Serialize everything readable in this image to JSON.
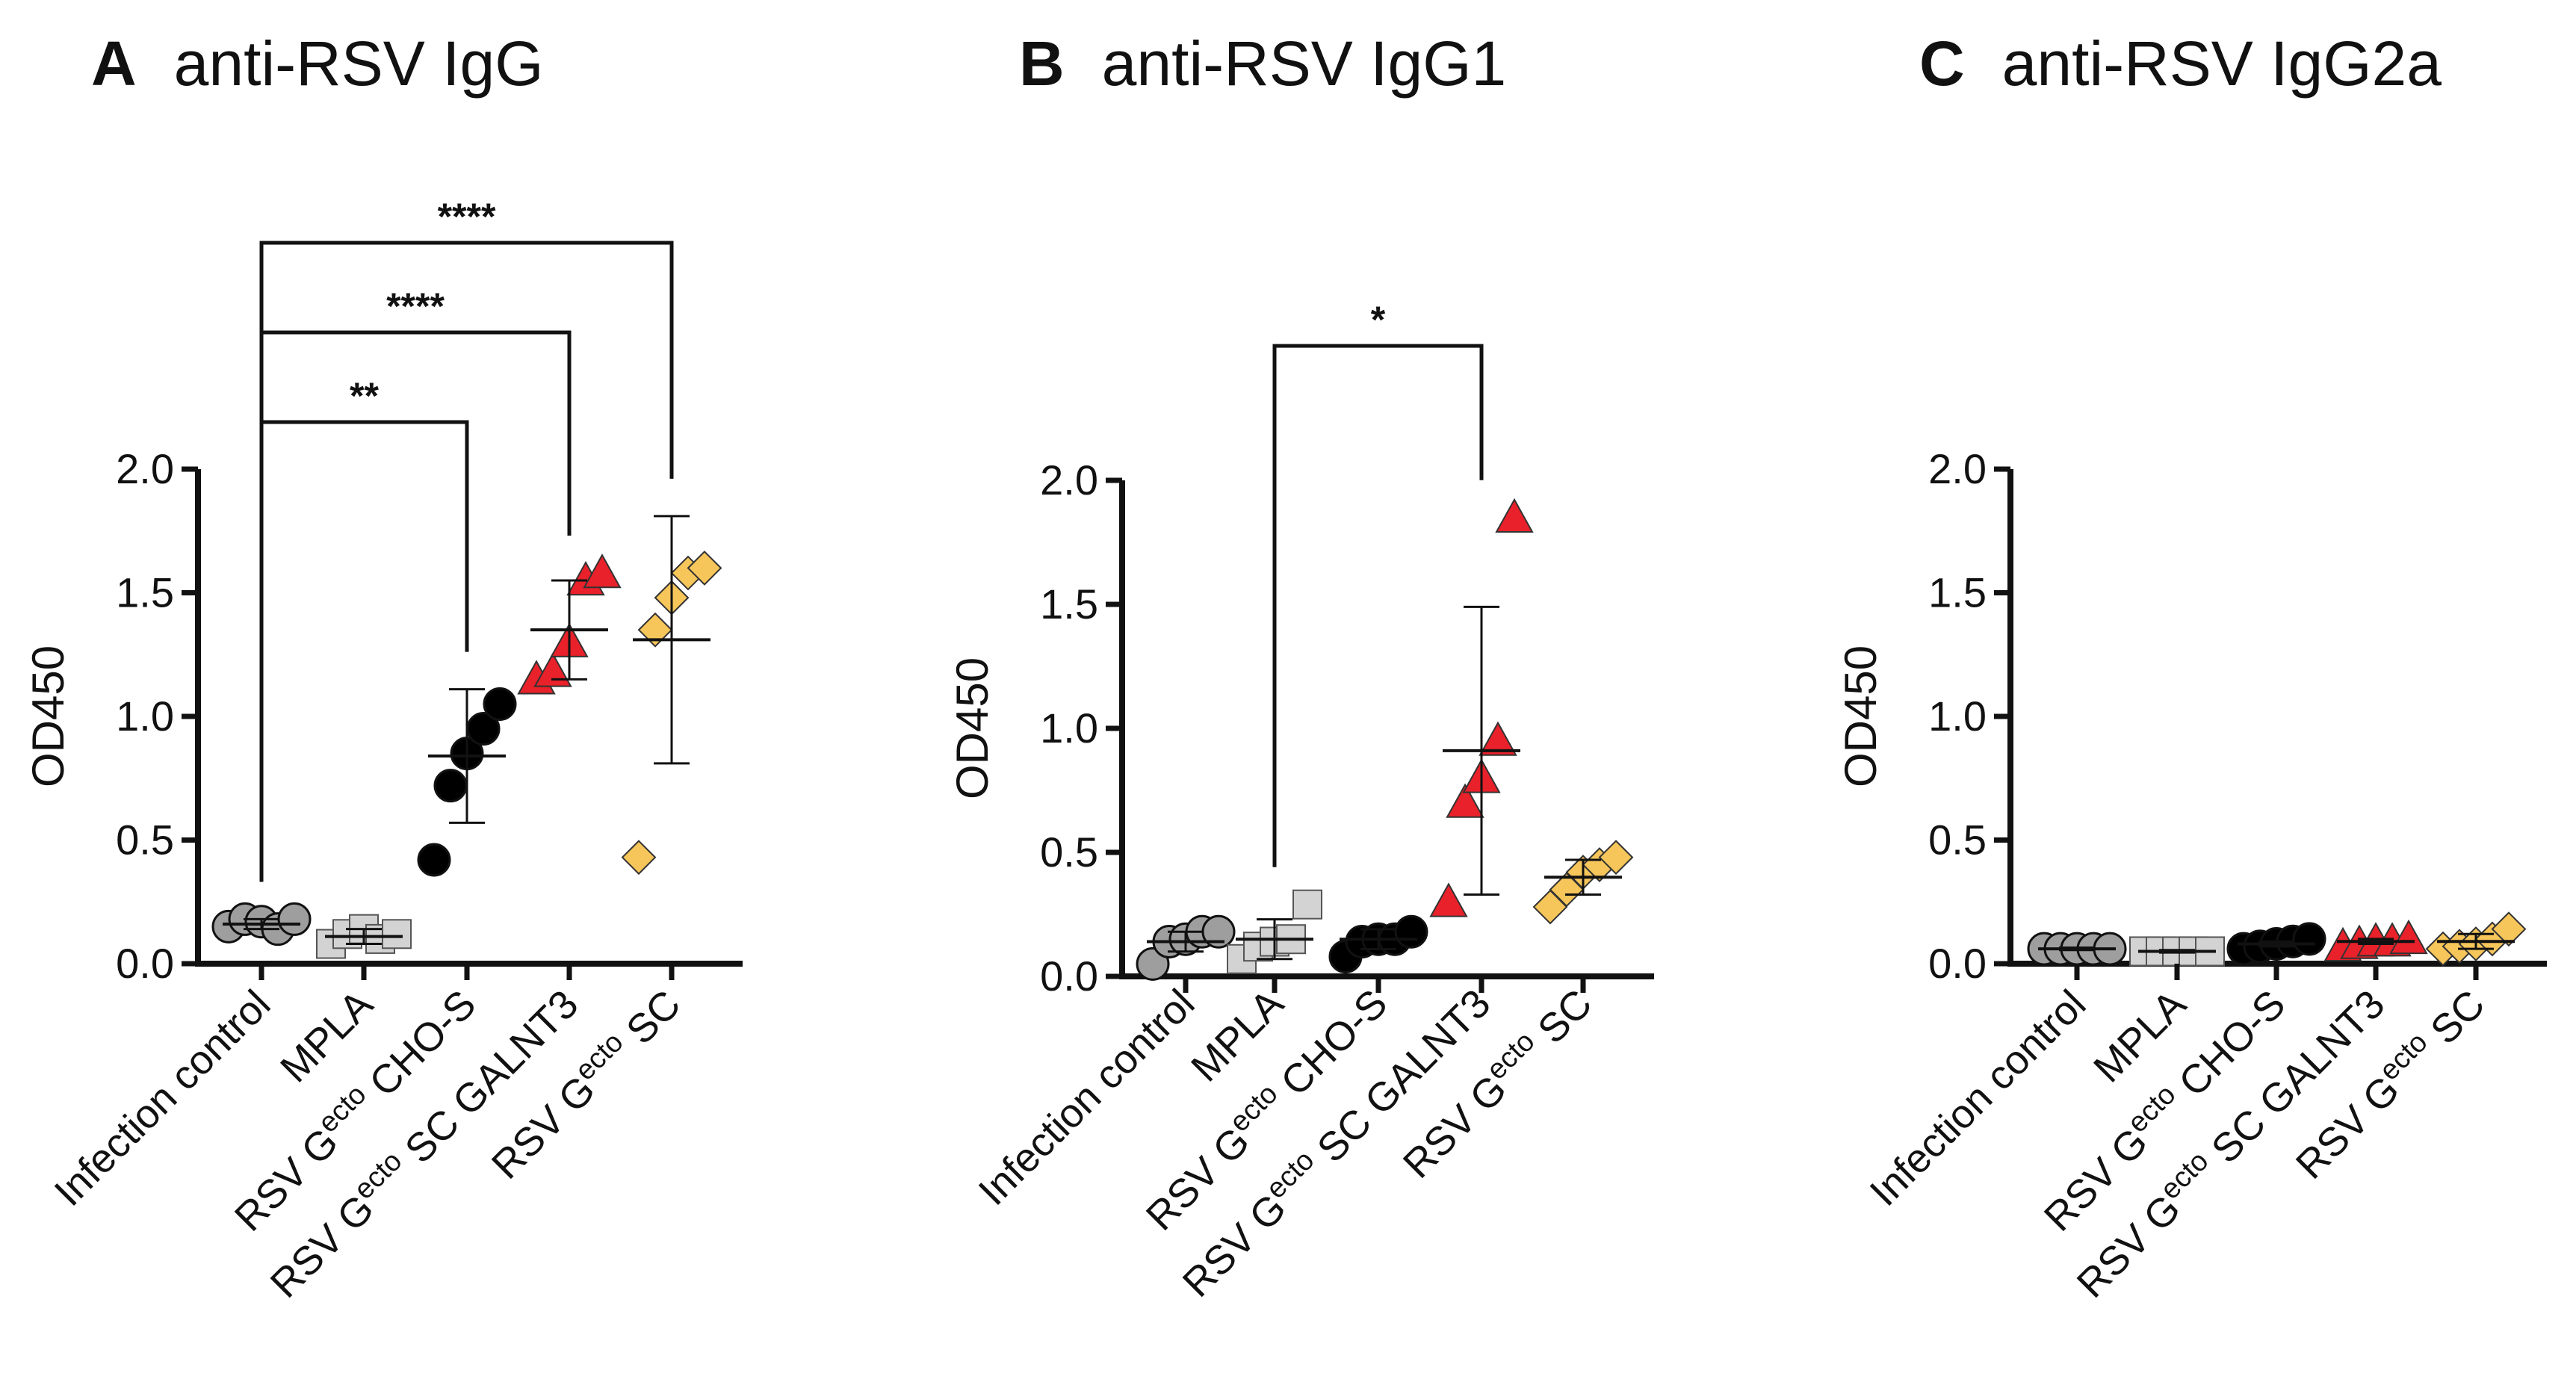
{
  "figure": {
    "panels": [
      {
        "letter": "A",
        "title": "anti-RSV IgG"
      },
      {
        "letter": "B",
        "title": "anti-RSV IgG1"
      },
      {
        "letter": "C",
        "title": "anti-RSV IgG2a"
      }
    ]
  },
  "groups": [
    {
      "label": "Infection control",
      "fill": "#9e9e9e",
      "marker": "circle"
    },
    {
      "label": "MPLA",
      "fill": "#d3d3d3",
      "marker": "square"
    },
    {
      "label": "RSV G^ecto CHO-S",
      "fill": "#000000",
      "marker": "circle"
    },
    {
      "label": "RSV G^ecto SC GALNT3",
      "fill": "#e8212a",
      "marker": "triangle"
    },
    {
      "label": "RSV G^ecto SC",
      "fill": "#f7c65a",
      "marker": "diamond"
    }
  ],
  "chart_data": [
    {
      "type": "scatter",
      "title": "anti-RSV IgG",
      "ylabel": "OD450",
      "ylim": [
        0,
        2.0
      ],
      "yticks": [
        "0.0",
        "0.5",
        "1.0",
        "1.5",
        "2.0"
      ],
      "categories": [
        "Infection control",
        "MPLA",
        "RSV G^ecto CHO-S",
        "RSV G^ecto SC GALNT3",
        "RSV G^ecto SC"
      ],
      "series": [
        {
          "name": "Infection control",
          "values": [
            0.15,
            0.18,
            0.17,
            0.14,
            0.18
          ],
          "mean": 0.16,
          "sd": 0.02
        },
        {
          "name": "MPLA",
          "values": [
            0.08,
            0.12,
            0.14,
            0.1,
            0.12
          ],
          "mean": 0.11,
          "sd": 0.03
        },
        {
          "name": "RSV G^ecto CHO-S",
          "values": [
            0.42,
            0.72,
            0.85,
            0.95,
            1.05
          ],
          "mean": 0.84,
          "sd": 0.27
        },
        {
          "name": "RSV G^ecto SC GALNT3",
          "values": [
            1.15,
            1.18,
            1.3,
            1.55,
            1.58
          ],
          "mean": 1.35,
          "sd": 0.2
        },
        {
          "name": "RSV G^ecto SC",
          "values": [
            0.43,
            1.35,
            1.48,
            1.58,
            1.6
          ],
          "mean": 1.31,
          "sd": 0.5
        }
      ],
      "comparisons": [
        {
          "from": 0,
          "to": 4,
          "label": "****"
        },
        {
          "from": 0,
          "to": 3,
          "label": "****"
        },
        {
          "from": 0,
          "to": 2,
          "label": "**"
        }
      ]
    },
    {
      "type": "scatter",
      "title": "anti-RSV IgG1",
      "ylabel": "OD450",
      "ylim": [
        0,
        2.0
      ],
      "yticks": [
        "0.0",
        "0.5",
        "1.0",
        "1.5",
        "2.0"
      ],
      "categories": [
        "Infection control",
        "MPLA",
        "RSV G^ecto CHO-S",
        "RSV G^ecto SC GALNT3",
        "RSV G^ecto SC"
      ],
      "series": [
        {
          "name": "Infection control",
          "values": [
            0.05,
            0.14,
            0.15,
            0.18,
            0.18
          ],
          "mean": 0.14,
          "sd": 0.04
        },
        {
          "name": "MPLA",
          "values": [
            0.07,
            0.12,
            0.14,
            0.15,
            0.29
          ],
          "mean": 0.15,
          "sd": 0.08
        },
        {
          "name": "RSV G^ecto CHO-S",
          "values": [
            0.08,
            0.14,
            0.15,
            0.15,
            0.18
          ],
          "mean": 0.15,
          "sd": 0.04
        },
        {
          "name": "RSV G^ecto SC GALNT3",
          "values": [
            0.3,
            0.7,
            0.8,
            0.95,
            1.85
          ],
          "mean": 0.91,
          "sd": 0.58
        },
        {
          "name": "RSV G^ecto SC",
          "values": [
            0.28,
            0.35,
            0.42,
            0.45,
            0.48
          ],
          "mean": 0.4,
          "sd": 0.07
        }
      ],
      "comparisons": [
        {
          "from": 1,
          "to": 3,
          "label": "*"
        }
      ]
    },
    {
      "type": "scatter",
      "title": "anti-RSV IgG2a",
      "ylabel": "OD450",
      "ylim": [
        0,
        2.0
      ],
      "yticks": [
        "0.0",
        "0.5",
        "1.0",
        "1.5",
        "2.0"
      ],
      "categories": [
        "Infection control",
        "MPLA",
        "RSV G^ecto CHO-S",
        "RSV G^ecto SC GALNT3",
        "RSV G^ecto SC"
      ],
      "series": [
        {
          "name": "Infection control",
          "values": [
            0.06,
            0.06,
            0.06,
            0.06,
            0.06
          ],
          "mean": 0.06,
          "sd": 0.005
        },
        {
          "name": "MPLA",
          "values": [
            0.05,
            0.05,
            0.05,
            0.05,
            0.05
          ],
          "mean": 0.05,
          "sd": 0.005
        },
        {
          "name": "RSV G^ecto CHO-S",
          "values": [
            0.06,
            0.07,
            0.08,
            0.09,
            0.1
          ],
          "mean": 0.08,
          "sd": 0.01
        },
        {
          "name": "RSV G^ecto SC GALNT3",
          "values": [
            0.07,
            0.08,
            0.09,
            0.09,
            0.1
          ],
          "mean": 0.09,
          "sd": 0.01
        },
        {
          "name": "RSV G^ecto SC",
          "values": [
            0.06,
            0.07,
            0.08,
            0.1,
            0.14
          ],
          "mean": 0.09,
          "sd": 0.03
        }
      ],
      "comparisons": []
    }
  ]
}
